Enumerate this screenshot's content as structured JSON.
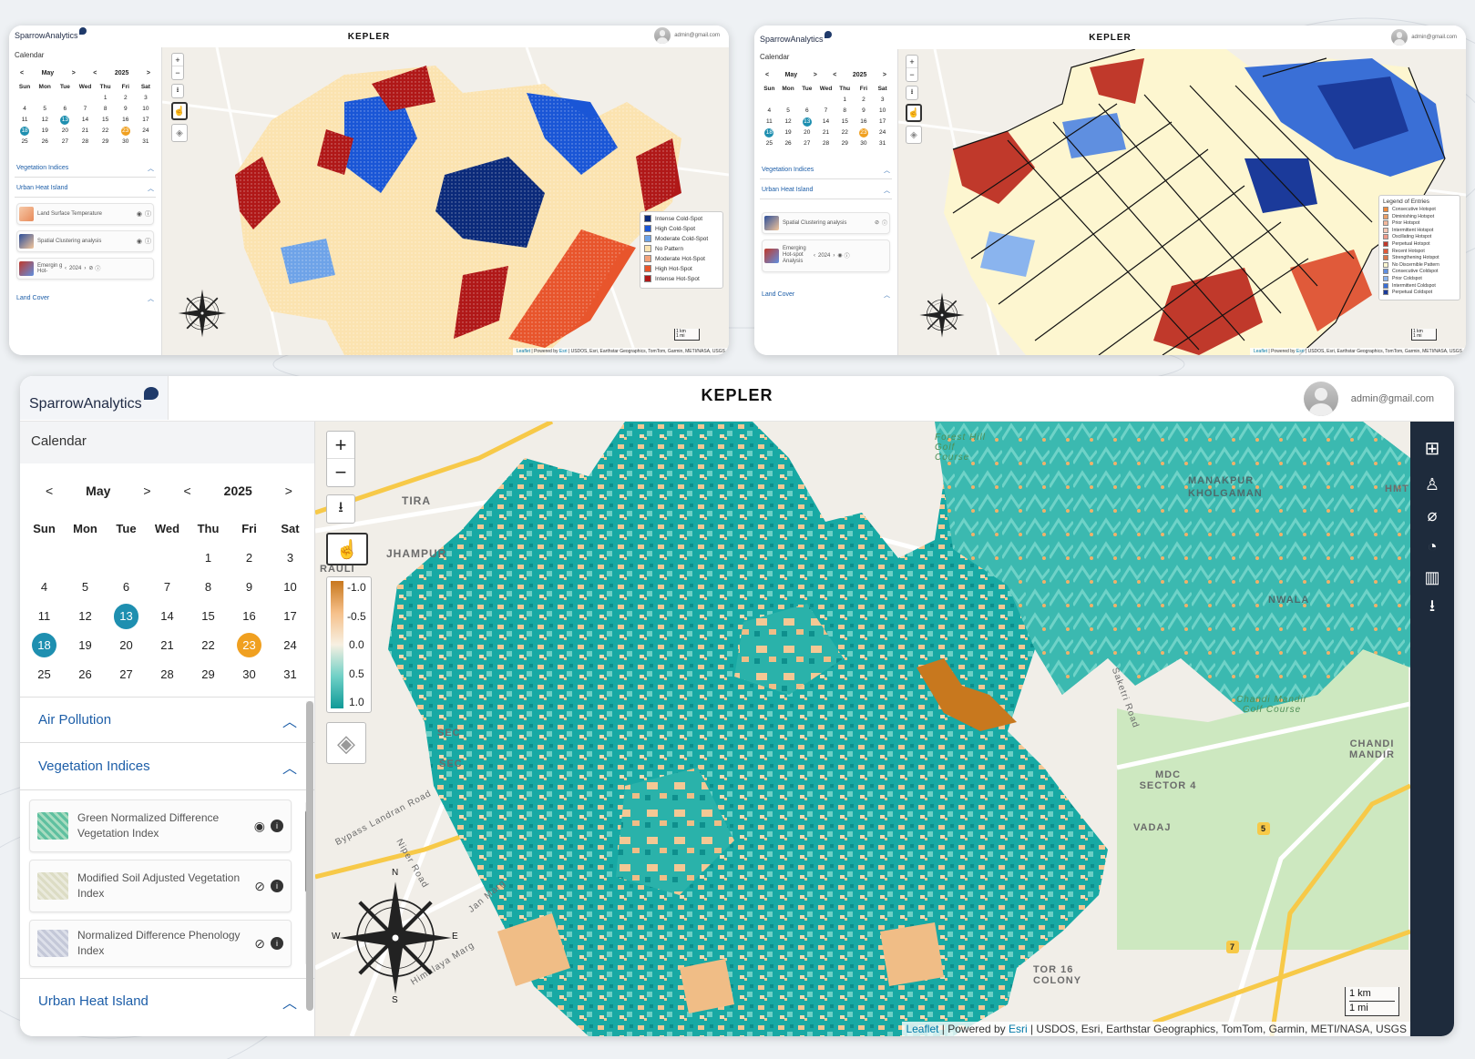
{
  "app": {
    "brand": "SparrowAnalytics",
    "title": "KEPLER",
    "user_email": "admin@gmail.com"
  },
  "calendar": {
    "section_label": "Calendar",
    "month": "May",
    "year": "2025",
    "prev_symbol": "<",
    "next_symbol": ">",
    "weekdays": [
      "Sun",
      "Mon",
      "Tue",
      "Wed",
      "Thu",
      "Fri",
      "Sat"
    ],
    "weeks": [
      [
        "",
        "",
        "",
        "",
        "1",
        "2",
        "3"
      ],
      [
        "4",
        "5",
        "6",
        "7",
        "8",
        "9",
        "10"
      ],
      [
        "11",
        "12",
        "13",
        "14",
        "15",
        "16",
        "17"
      ],
      [
        "18",
        "19",
        "20",
        "21",
        "22",
        "23",
        "24"
      ],
      [
        "25",
        "26",
        "27",
        "28",
        "29",
        "30",
        "31"
      ]
    ],
    "highlight_today": "23",
    "highlight_selected": [
      "13",
      "18"
    ],
    "colors": {
      "today": "#f0a020",
      "selected": "#1e8fb0"
    }
  },
  "screen1": {
    "sections": [
      "Vegetation Indices",
      "Urban Heat Island",
      "Land Cover"
    ],
    "layers": [
      {
        "name": "Land Surface Temperature"
      },
      {
        "name": "Spatial Clustering analysis"
      },
      {
        "name": "Emergin g Hot-",
        "year": "2024"
      }
    ],
    "legend": [
      {
        "label": "Intense Cold-Spot",
        "color": "#0b2a7a"
      },
      {
        "label": "High Cold-Spot",
        "color": "#1a56d6"
      },
      {
        "label": "Moderate Cold-Spot",
        "color": "#6ea3e8"
      },
      {
        "label": "No Pattern",
        "color": "#fbe3b0"
      },
      {
        "label": "Moderate Hot-Spot",
        "color": "#f4a27a"
      },
      {
        "label": "High Hot-Spot",
        "color": "#e8552c"
      },
      {
        "label": "Intense Hot-Spot",
        "color": "#b01818"
      }
    ]
  },
  "screen2": {
    "sections": [
      "Vegetation Indices",
      "Urban Heat Island",
      "Land Cover"
    ],
    "layers": [
      {
        "name": "Spatial Clustering analysis"
      },
      {
        "name": "Emerging Hot-spot Analysis",
        "year": "2024"
      }
    ],
    "legend_title": "Legend of Entries",
    "legend": [
      {
        "label": "Consecutive Hotspot",
        "color": "#f08a3a"
      },
      {
        "label": "Diminishing Hotspot",
        "color": "#e9a06a"
      },
      {
        "label": "Prior Hotspot",
        "color": "#f3b89c"
      },
      {
        "label": "Intermittent Hotspot",
        "color": "#f6c7b4"
      },
      {
        "label": "Oscillating Hotspot",
        "color": "#ee9a8a"
      },
      {
        "label": "Perpetual Hotspot",
        "color": "#c0392b"
      },
      {
        "label": "Recent Hotspot",
        "color": "#e05a3a"
      },
      {
        "label": "Strengthening Hotspot",
        "color": "#d9774c"
      },
      {
        "label": "No Discernible Pattern",
        "color": "#fdf6d0"
      },
      {
        "label": "Consecutive Coldspot",
        "color": "#5f8fe0"
      },
      {
        "label": "Prior Coldspot",
        "color": "#8ab4ee"
      },
      {
        "label": "Intermittent Coldspot",
        "color": "#3a6fd6"
      },
      {
        "label": "Perpetual Coldspot",
        "color": "#1b3a9a"
      }
    ]
  },
  "main": {
    "sections": {
      "air": "Air Pollution",
      "veg": "Vegetation Indices",
      "uhi": "Urban Heat Island"
    },
    "layers": [
      {
        "name": "Green Normalized Difference Vegetation Index",
        "visible": true
      },
      {
        "name": "Modified Soil Adjusted Vegetation Index",
        "visible": false
      },
      {
        "name": "Normalized Difference Phenology Index",
        "visible": false
      }
    ],
    "colorbar": {
      "ticks": [
        "-1.0",
        "-0.5",
        "0.0",
        "0.5",
        "1.0"
      ],
      "colors": [
        "#c8781e",
        "#f6c08a",
        "#f7f0e2",
        "#6fd0c6",
        "#0f9a98"
      ]
    },
    "zoom_in": "+",
    "zoom_out": "−",
    "compass": {
      "n": "N",
      "s": "S",
      "e": "E",
      "w": "W"
    },
    "map_labels": {
      "tira": "TIRA",
      "jhampur": "JHAMPUR",
      "manakpur": "MANAKPUR KHOLGAMAN",
      "hmt": "HMT",
      "nwala": "NWALA",
      "chandi_golf": "Chandi Mandir Golf Course",
      "chandi_mandir": "CHANDI MANDIR",
      "mdc": "MDC SECTOR 4",
      "vadaj": "VADAJ",
      "colony": "TOR 16 COLONY",
      "forest_golf": "Forest Hill Golf Course",
      "saketri": "Saketri Road",
      "bypass": "Bypass Landran Road",
      "niper": "Niper Road",
      "jan_marg": "Jan Marg",
      "himalaya": "Himalaya Marg",
      "sec1": "SEC",
      "sec2": "SEC",
      "rauli": "RAULI",
      "road5": "5",
      "road7": "7"
    },
    "scale_km": "1 km",
    "scale_mi": "1 mi"
  },
  "attribution": {
    "leaflet": "Leaflet",
    "esri": "Esri",
    "text": "| USDOS, Esri, Earthstar Geographics, TomTom, Garmin, METI/NASA, USGS",
    "powered": " | Powered by "
  }
}
